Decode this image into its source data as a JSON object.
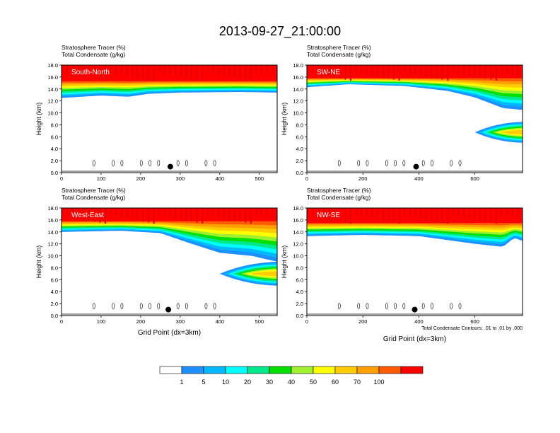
{
  "title": "2013-09-27_21:00:00",
  "panels": [
    {
      "name": "panel-south-north",
      "label": "South-North",
      "header": [
        "Stratosphere Tracer   (%)",
        "Total Condensate   (g/kg)"
      ],
      "xticks": [
        "0",
        "100",
        "200",
        "300",
        "400",
        "500"
      ],
      "xmax": 545,
      "show_xlabel": false,
      "footnote": ""
    },
    {
      "name": "panel-sw-ne",
      "label": "SW-NE",
      "header": [
        "Stratosphere Tracer   (%)",
        "Total Condensate   (g/kg)"
      ],
      "xticks": [
        "0",
        "200",
        "400",
        "600"
      ],
      "xmax": 770,
      "show_xlabel": false,
      "footnote": ""
    },
    {
      "name": "panel-west-east",
      "label": "West-East",
      "header": [
        "Stratosphere Tracer   (%)",
        "Total Condensate   (g/kg)"
      ],
      "xticks": [
        "0",
        "100",
        "200",
        "300",
        "400",
        "500"
      ],
      "xmax": 545,
      "show_xlabel": true,
      "footnote": ""
    },
    {
      "name": "panel-nw-se",
      "label": "NW-SE",
      "header": [
        "Stratosphere Tracer   (%)",
        "Total Condensate   (g/kg)"
      ],
      "xticks": [
        "0",
        "200",
        "400",
        "600"
      ],
      "xmax": 770,
      "show_xlabel": true,
      "footnote": "Total Condensate Contours: .01 to .01 by .000"
    }
  ],
  "ylabel": "Height (km)",
  "xlabel": "Grid Point (dx=3km)",
  "yticks": [
    "0.0",
    "2.0",
    "4.0",
    "6.0",
    "8.0",
    "10.0",
    "12.0",
    "14.0",
    "16.0",
    "18.0"
  ],
  "colorbar": {
    "labels": [
      "1",
      "5",
      "10",
      "20",
      "30",
      "40",
      "50",
      "60",
      "70",
      "100"
    ],
    "colors": [
      "#ffffff",
      "#1e8fff",
      "#00b8ff",
      "#00ffff",
      "#00e88c",
      "#00e000",
      "#a0f030",
      "#ffff00",
      "#ffcc00",
      "#ffa000",
      "#ff5a00",
      "#ff0000"
    ]
  },
  "chart_data": [
    {
      "type": "heatmap",
      "title": "South-North",
      "xlabel": "",
      "ylabel": "Height (km)",
      "xlim": [
        0,
        545
      ],
      "ylim": [
        0,
        18
      ],
      "levels_percent": [
        1,
        5,
        10,
        20,
        30,
        40,
        50,
        60,
        70,
        100
      ],
      "tracer_bottom_km": [
        {
          "x": 0,
          "km": 12.5
        },
        {
          "x": 100,
          "km": 12.9
        },
        {
          "x": 170,
          "km": 12.7
        },
        {
          "x": 220,
          "km": 13.2
        },
        {
          "x": 300,
          "km": 13.4
        },
        {
          "x": 450,
          "km": 13.5
        },
        {
          "x": 545,
          "km": 13.4
        }
      ],
      "tracer_top_band_km": 15.3,
      "markers": [
        {
          "x": 275,
          "km": 1.0
        }
      ]
    },
    {
      "type": "heatmap",
      "title": "SW-NE",
      "xlabel": "",
      "ylabel": "Height (km)",
      "xlim": [
        0,
        770
      ],
      "ylim": [
        0,
        18
      ],
      "levels_percent": [
        1,
        5,
        10,
        20,
        30,
        40,
        50,
        60,
        70,
        100
      ],
      "tracer_bottom_km": [
        {
          "x": 0,
          "km": 14.3
        },
        {
          "x": 150,
          "km": 14.8
        },
        {
          "x": 350,
          "km": 14.5
        },
        {
          "x": 500,
          "km": 13.7
        },
        {
          "x": 600,
          "km": 12.6
        },
        {
          "x": 700,
          "km": 10.8
        },
        {
          "x": 770,
          "km": 10.5
        }
      ],
      "tracer_top_band_km": 15.8,
      "lower_intrusion": {
        "x_start": 600,
        "x_end": 770,
        "km_low": 5.0,
        "km_high": 8.5
      },
      "markers": [
        {
          "x": 390,
          "km": 1.0
        }
      ]
    },
    {
      "type": "heatmap",
      "title": "West-East",
      "xlabel": "Grid Point (dx=3km)",
      "ylabel": "Height (km)",
      "xlim": [
        0,
        545
      ],
      "ylim": [
        0,
        18
      ],
      "levels_percent": [
        1,
        5,
        10,
        20,
        30,
        40,
        50,
        60,
        70,
        100
      ],
      "tracer_bottom_km": [
        {
          "x": 0,
          "km": 14.0
        },
        {
          "x": 150,
          "km": 14.2
        },
        {
          "x": 250,
          "km": 13.8
        },
        {
          "x": 320,
          "km": 12.2
        },
        {
          "x": 400,
          "km": 10.5
        },
        {
          "x": 480,
          "km": 10.0
        },
        {
          "x": 545,
          "km": 9.0
        }
      ],
      "tracer_top_band_km": 15.8,
      "lower_intrusion": {
        "x_start": 400,
        "x_end": 545,
        "km_low": 5.0,
        "km_high": 9.0
      },
      "markers": [
        {
          "x": 270,
          "km": 1.0
        }
      ]
    },
    {
      "type": "heatmap",
      "title": "NW-SE",
      "xlabel": "Grid Point (dx=3km)",
      "ylabel": "Height (km)",
      "xlim": [
        0,
        770
      ],
      "ylim": [
        0,
        18
      ],
      "levels_percent": [
        1,
        5,
        10,
        20,
        30,
        40,
        50,
        60,
        70,
        100
      ],
      "tracer_bottom_km": [
        {
          "x": 0,
          "km": 13.3
        },
        {
          "x": 200,
          "km": 13.5
        },
        {
          "x": 400,
          "km": 13.3
        },
        {
          "x": 600,
          "km": 12.0
        },
        {
          "x": 700,
          "km": 11.5
        },
        {
          "x": 740,
          "km": 13.0
        },
        {
          "x": 770,
          "km": 12.5
        }
      ],
      "tracer_top_band_km": 15.5,
      "markers": [
        {
          "x": 385,
          "km": 1.0
        }
      ]
    }
  ]
}
